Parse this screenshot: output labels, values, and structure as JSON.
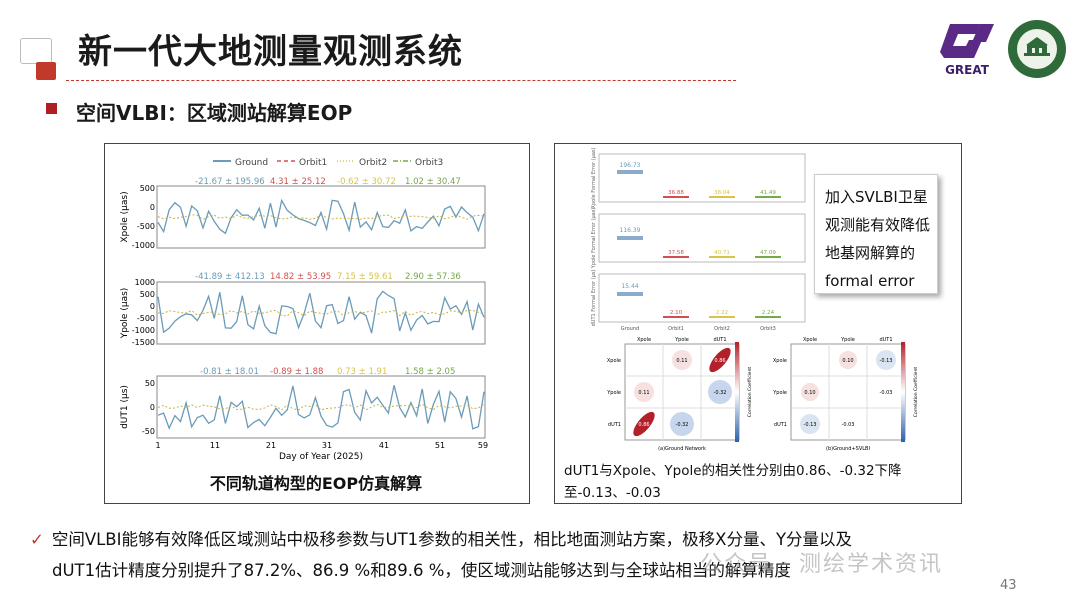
{
  "header": {
    "title": "新一代大地测量观测系统",
    "logo_great_text": "GREAT",
    "logo_whu_text": "WUHAN UNIVERSITY"
  },
  "section": {
    "title": "空间VLBI：区域测站解算EOP"
  },
  "left_figure": {
    "legend": [
      "Ground",
      "Orbit1",
      "Orbit2",
      "Orbit3"
    ],
    "colors": {
      "ground": "#6a9bb8",
      "orbit1": "#d05050",
      "orbit2": "#d9c34a",
      "orbit3": "#77a84a"
    },
    "panels": [
      {
        "ylabel": "Xpole (μas)",
        "yticks": [
          "500",
          "0",
          "-500",
          "-1000"
        ],
        "stats": [
          "-21.67 ± 195.96",
          "4.31 ± 25.12",
          "-0.62 ± 30.72",
          "1.02 ± 30.47"
        ]
      },
      {
        "ylabel": "Ypole (μas)",
        "yticks": [
          "1000",
          "500",
          "0",
          "-500",
          "-1000",
          "-1500"
        ],
        "stats": [
          "-41.89 ± 412.13",
          "14.82 ± 53.95",
          "7.15 ± 59.61",
          "2.90 ± 57.36"
        ]
      },
      {
        "ylabel": "dUT1 (μs)",
        "yticks": [
          "50",
          "0",
          "-50"
        ],
        "stats": [
          "-0.81 ± 18.01",
          "-0.89 ± 1.88",
          "0.73 ± 1.91",
          "1.58 ± 2.05"
        ]
      }
    ],
    "xticks": [
      "1",
      "11",
      "21",
      "31",
      "41",
      "51",
      "59"
    ],
    "xlabel": "Day of Year (2025)",
    "caption": "不同轨道构型的EOP仿真解算"
  },
  "right_figure": {
    "bar_panels": [
      {
        "ylabel": "Xpole Formal Error (μas)",
        "values": [
          "196.73",
          "36.88",
          "38.04",
          "41.49"
        ]
      },
      {
        "ylabel": "Ypole Formal Error (μas)",
        "values": [
          "116.39",
          "37.58",
          "40.71",
          "47.09"
        ]
      },
      {
        "ylabel": "dUT1 Formal Error (μs)",
        "values": [
          "15.44",
          "2.10",
          "2.22",
          "2.24"
        ]
      }
    ],
    "bar_categories": [
      "Ground",
      "Orbit1",
      "Orbit2",
      "Orbit3"
    ],
    "corr_a": {
      "labels": [
        "Xpole",
        "Ypole",
        "dUT1"
      ],
      "values": [
        "0.11",
        "0.86",
        "0.11",
        "-0.32",
        "0.86",
        "-0.32"
      ],
      "caption": "(a)Ground Network",
      "cbar_label": "Correlation Coefficient"
    },
    "corr_b": {
      "labels": [
        "Xpole",
        "Ypole",
        "dUT1"
      ],
      "values": [
        "0.10",
        "-0.13",
        "0.10",
        "-0.03",
        "-0.13",
        "-0.03"
      ],
      "caption": "(b)Ground+SVLBI",
      "cbar_label": "Correlation Coefficient"
    },
    "note_lines": [
      "加入SVLBI卫星",
      "观测能有效降低",
      "地基网解算的",
      "formal error"
    ],
    "caption": "dUT1与Xpole、Ypole的相关性分别由0.86、-0.32下降至-0.13、-0.03"
  },
  "bottom": {
    "line1": "空间VLBI能够有效降低区域测站中极移参数与UT1参数的相关性，相比地面测站方案，极移X分量、Y分量以及",
    "line2": "dUT1估计精度分别提升了87.2%、86.9 %和89.6 %，使区域测站能够达到与全球站相当的解算精度"
  },
  "watermark": "公众号 · 测绘学术资讯",
  "page_number": "43"
}
